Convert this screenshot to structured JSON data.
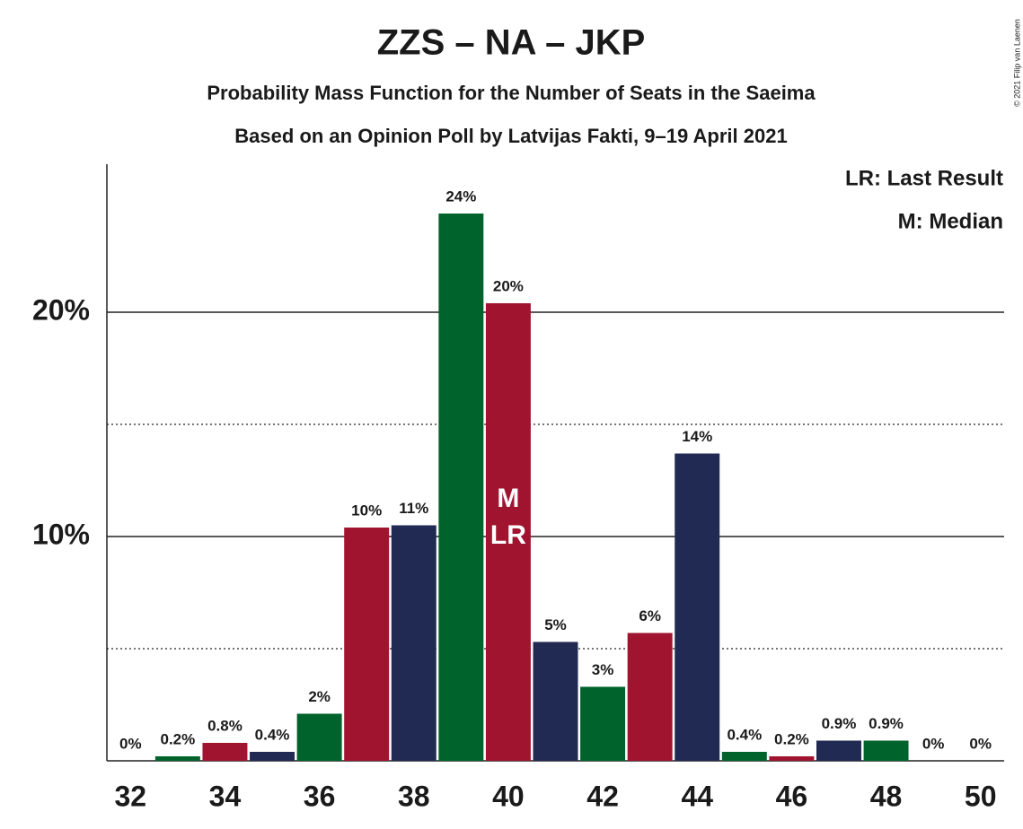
{
  "chart_data": {
    "type": "bar",
    "title": "ZZS – NA – JKP",
    "subtitle": "Probability Mass Function for the Number of Seats in the Saeima",
    "subtitle2": "Based on an Opinion Poll by Latvijas Fakti, 9–19 April 2021",
    "copyright": "© 2021 Filip van Laenen",
    "legend": [
      "LR: Last Result",
      "M: Median"
    ],
    "x": [
      32,
      33,
      34,
      35,
      36,
      37,
      38,
      39,
      40,
      41,
      42,
      43,
      44,
      45,
      46,
      47,
      48,
      49,
      50
    ],
    "values": [
      0,
      0.2,
      0.8,
      0.4,
      2.1,
      10.4,
      10.5,
      24.4,
      20.4,
      5.3,
      3.3,
      5.7,
      13.7,
      0.4,
      0.2,
      0.9,
      0.9,
      0,
      0
    ],
    "value_labels": [
      "0%",
      "0.2%",
      "0.8%",
      "0.4%",
      "2%",
      "10%",
      "11%",
      "24%",
      "20%",
      "5%",
      "3%",
      "6%",
      "14%",
      "0.4%",
      "0.2%",
      "0.9%",
      "0.9%",
      "0%",
      "0%"
    ],
    "colors": [
      "#212a52",
      "#00632b",
      "#a0142f",
      "#212a52",
      "#00632b",
      "#a0142f",
      "#212a52",
      "#00632b",
      "#a0142f",
      "#212a52",
      "#00632b",
      "#a0142f",
      "#212a52",
      "#00632b",
      "#a0142f",
      "#212a52",
      "#00632b",
      "#a0142f",
      "#212a52"
    ],
    "xlim": [
      31.5,
      50.5
    ],
    "xticks": [
      32,
      34,
      36,
      38,
      40,
      42,
      44,
      46,
      48,
      50
    ],
    "ylim": [
      0,
      26.6
    ],
    "yticks": [
      {
        "value": 10,
        "label": "10%"
      },
      {
        "value": 20,
        "label": "20%"
      }
    ],
    "minor_yticks": [
      5,
      15
    ],
    "markers": [
      {
        "x": 40,
        "label": "M"
      },
      {
        "x": 40,
        "label": "LR"
      }
    ]
  }
}
